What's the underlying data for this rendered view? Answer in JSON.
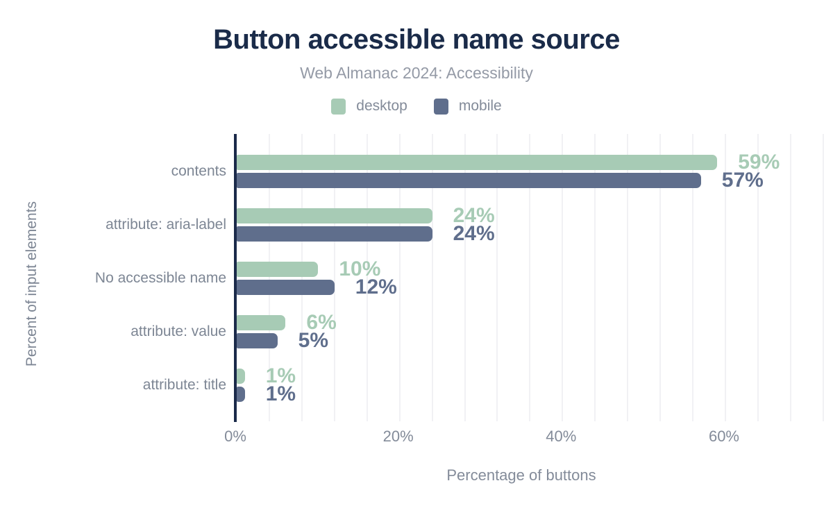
{
  "header": {
    "title": "Button accessible name source",
    "subtitle": "Web Almanac 2024: Accessibility"
  },
  "legend": {
    "items": [
      {
        "label": "desktop",
        "color": "#a7cbb5"
      },
      {
        "label": "mobile",
        "color": "#5f6e8c"
      }
    ]
  },
  "chart_data": {
    "type": "bar",
    "orientation": "horizontal",
    "title": "Button accessible name source",
    "subtitle": "Web Almanac 2024: Accessibility",
    "categories": [
      "contents",
      "attribute: aria-label",
      "No accessible name",
      "attribute: value",
      "attribute: title"
    ],
    "series": [
      {
        "name": "desktop",
        "color": "#a7cbb5",
        "values": [
          59,
          24,
          10,
          6,
          1
        ]
      },
      {
        "name": "mobile",
        "color": "#5f6e8c",
        "values": [
          57,
          24,
          12,
          5,
          1
        ]
      }
    ],
    "value_suffix": "%",
    "value_labels": true,
    "xlabel": "Percentage of buttons",
    "ylabel": "Percent of input elements",
    "x_tick_values": [
      0,
      20,
      40,
      60
    ],
    "x_tick_labels": [
      "0%",
      "20%",
      "40%",
      "60%"
    ],
    "xlim": [
      0,
      72
    ],
    "grid": true,
    "gridline_step_pct": 4,
    "legend_position": "top"
  },
  "colors": {
    "title": "#1a2b49",
    "axis_line": "#1b2a4a",
    "gridline": "#f1f1f4",
    "text_muted": "#838b99",
    "background": "#ffffff"
  }
}
